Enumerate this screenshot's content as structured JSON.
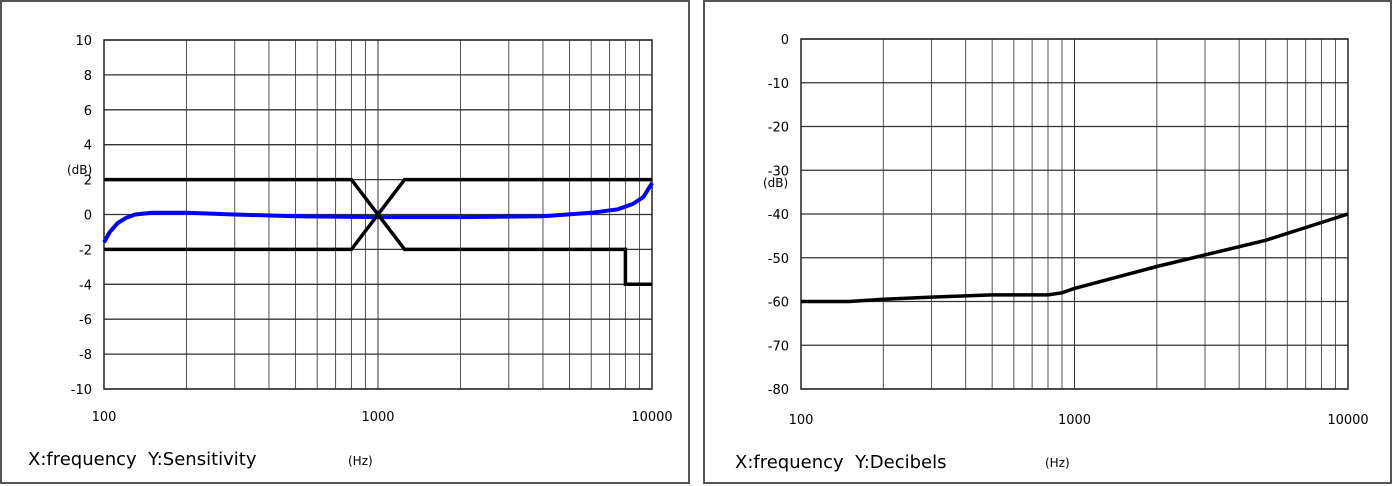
{
  "chart_data": [
    {
      "type": "line",
      "x_scale": "log",
      "xlim": [
        100,
        10000
      ],
      "ylim": [
        -10,
        10
      ],
      "x_ticks": [
        "100",
        "1000",
        "10000"
      ],
      "y_ticks": [
        "10",
        "8",
        "6",
        "4",
        "2",
        "0",
        "-2",
        "-4",
        "-6",
        "-8",
        "-10"
      ],
      "ylabel": "(dB)",
      "caption": "X:frequency  Y:Sensitivity",
      "x_unit": "(Hz)",
      "grid": true,
      "series": [
        {
          "color": "#0000ff",
          "x": [
            100,
            105,
            112,
            120,
            130,
            150,
            200,
            300,
            500,
            1000,
            2000,
            4000,
            6000,
            7500,
            8500,
            9300,
            10000
          ],
          "y": [
            -1.6,
            -1.0,
            -0.5,
            -0.2,
            0.0,
            0.1,
            0.1,
            0.0,
            -0.1,
            -0.15,
            -0.15,
            -0.1,
            0.1,
            0.3,
            0.6,
            1.0,
            1.8
          ]
        },
        {
          "color": "#000000",
          "x": [
            100,
            800,
            1000,
            1250,
            10000
          ],
          "y": [
            2,
            2,
            0,
            2,
            2
          ]
        },
        {
          "color": "#000000",
          "x": [
            100,
            800,
            1000,
            1250,
            8000,
            8000,
            10000
          ],
          "y": [
            -2,
            -2,
            0,
            -2,
            -2,
            -4,
            -4
          ]
        }
      ]
    },
    {
      "type": "line",
      "x_scale": "log",
      "xlim": [
        100,
        10000
      ],
      "ylim": [
        -80,
        0
      ],
      "x_ticks": [
        "100",
        "1000",
        "10000"
      ],
      "y_ticks": [
        "0",
        "-10",
        "-20",
        "-30",
        "-40",
        "-50",
        "-60",
        "-70",
        "-80"
      ],
      "ylabel": "(dB)",
      "caption": "X:frequency  Y:Decibels",
      "x_unit": "(Hz)",
      "grid": true,
      "series": [
        {
          "color": "#000000",
          "x": [
            100,
            150,
            200,
            300,
            500,
            800,
            900,
            1000,
            2000,
            5000,
            10000
          ],
          "y": [
            -60,
            -60,
            -59.5,
            -59,
            -58.5,
            -58.5,
            -58,
            -57,
            -52,
            -46,
            -40
          ]
        }
      ]
    }
  ]
}
